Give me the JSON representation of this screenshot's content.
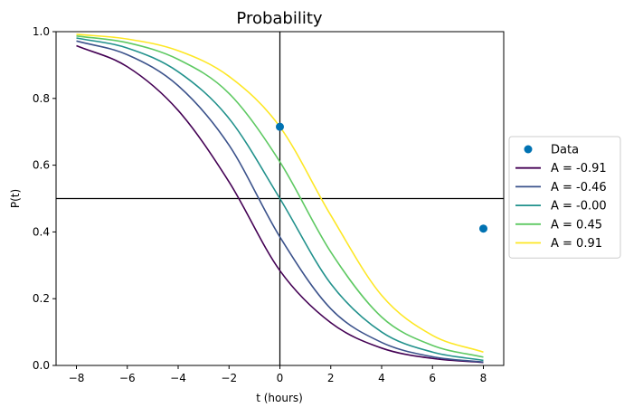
{
  "chart_data": {
    "type": "line",
    "title": "Probability",
    "xlabel": "t (hours)",
    "ylabel": "P(t)",
    "xlim": [
      -8.8,
      8.8
    ],
    "ylim": [
      0,
      1
    ],
    "xticks": [
      -8,
      -6,
      -4,
      -2,
      0,
      2,
      4,
      6,
      8
    ],
    "xtick_labels": [
      "−8",
      "−6",
      "−4",
      "−2",
      "0",
      "2",
      "4",
      "6",
      "8"
    ],
    "yticks": [
      0.0,
      0.2,
      0.4,
      0.6,
      0.8,
      1.0
    ],
    "ytick_labels": [
      "0.0",
      "0.2",
      "0.4",
      "0.6",
      "0.8",
      "1.0"
    ],
    "grid": false,
    "legend_position": "outside-right",
    "reference_lines": {
      "vertical_x": 0,
      "horizontal_y": 0.5
    },
    "scatter": {
      "name": "Data",
      "color": "#0072b2",
      "x": [
        0,
        8
      ],
      "y": [
        0.715,
        0.41
      ]
    },
    "series": [
      {
        "name": "A = -0.91",
        "color": "#440154",
        "x": [
          -8,
          -6,
          -4,
          -2,
          0,
          2,
          4,
          6,
          8
        ],
        "y": [
          0.958,
          0.895,
          0.764,
          0.55,
          0.284,
          0.128,
          0.052,
          0.021,
          0.009
        ]
      },
      {
        "name": "A = -0.46",
        "color": "#3b528b",
        "x": [
          -8,
          -6,
          -4,
          -2,
          0,
          2,
          4,
          6,
          8
        ],
        "y": [
          0.972,
          0.931,
          0.838,
          0.66,
          0.385,
          0.17,
          0.069,
          0.026,
          0.01
        ]
      },
      {
        "name": "A = -0.00",
        "color": "#21918c",
        "x": [
          -8,
          -6,
          -4,
          -2,
          0,
          2,
          4,
          6,
          8
        ],
        "y": [
          0.981,
          0.951,
          0.88,
          0.74,
          0.5,
          0.245,
          0.1,
          0.04,
          0.015
        ]
      },
      {
        "name": "A = 0.45",
        "color": "#5ec962",
        "x": [
          -8,
          -6,
          -4,
          -2,
          0,
          2,
          4,
          6,
          8
        ],
        "y": [
          0.987,
          0.967,
          0.917,
          0.815,
          0.61,
          0.34,
          0.145,
          0.06,
          0.025
        ]
      },
      {
        "name": "A = 0.91",
        "color": "#fde725",
        "x": [
          -8,
          -6,
          -4,
          -2,
          0,
          2,
          4,
          6,
          8
        ],
        "y": [
          0.992,
          0.978,
          0.943,
          0.866,
          0.715,
          0.45,
          0.21,
          0.09,
          0.04
        ]
      }
    ]
  }
}
